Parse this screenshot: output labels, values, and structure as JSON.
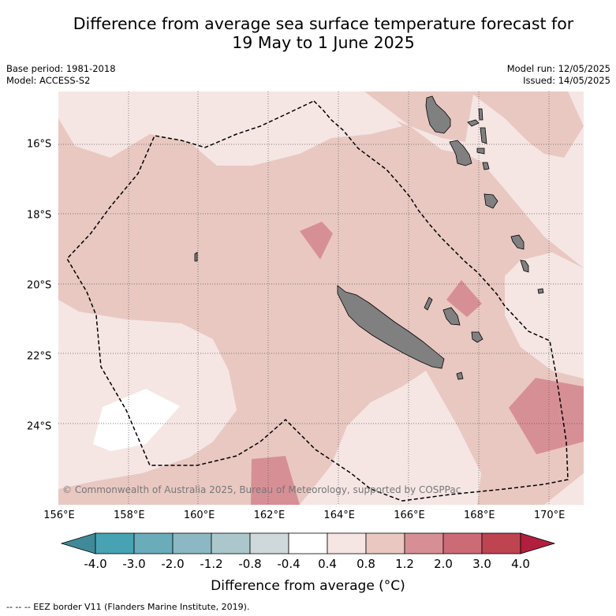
{
  "title_line1": "Difference from average sea surface temperature forecast for",
  "title_line2": "19 May to 1 June 2025",
  "meta_left": {
    "base_period": "Base period: 1981-2018",
    "model": "Model: ACCESS-S2"
  },
  "meta_right": {
    "model_run": "Model run: 12/05/2025",
    "issued": "Issued: 14/05/2025"
  },
  "lon_labels": [
    "156°E",
    "158°E",
    "160°E",
    "162°E",
    "164°E",
    "166°E",
    "168°E",
    "170°E"
  ],
  "lat_labels": [
    "16°S",
    "18°S",
    "20°S",
    "22°S",
    "24°S"
  ],
  "map_extent": {
    "lon_min": 156,
    "lon_max": 171,
    "lat_min": -26.2,
    "lat_max": -14.5
  },
  "copyright": "© Commonwealth of Australia 2025, Bureau of Meteorology, supported by COSPPac",
  "colorbar": {
    "tick_labels": [
      "-4.0",
      "-3.0",
      "-2.0",
      "-1.2",
      "-0.8",
      "-0.4",
      "0.4",
      "0.8",
      "1.2",
      "2.0",
      "3.0",
      "4.0"
    ],
    "colors": [
      "#47a3b3",
      "#6aacba",
      "#8bb8c3",
      "#abc7cc",
      "#cfd8da",
      "#ffffff",
      "#f5e6e4",
      "#e9c8c2",
      "#d78f96",
      "#cc6b76",
      "#be4452"
    ],
    "under_color": "#3f8a98",
    "over_color": "#b01f3e",
    "label": "Difference from average (°C)"
  },
  "footer": "--  --  -- EEZ border V11 (Flanders Marine Institute, 2019).",
  "colors": {
    "land": "#808080",
    "eez": "#000000",
    "grid": "#555555"
  }
}
